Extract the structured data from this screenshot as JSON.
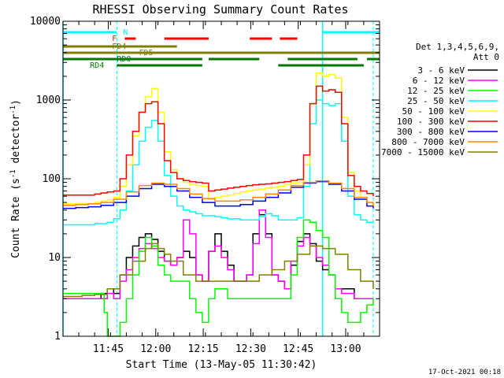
{
  "chart_data": {
    "type": "line",
    "title": "RHESSI Observing Summary Count Rates",
    "xlabel": "Start Time (13-May-05 11:30:42)",
    "ylabel_main": "Count Rate (s",
    "ylabel_sup1": "-1",
    "ylabel_mid": " detector",
    "ylabel_sup2": "-1",
    "ylabel_end": ")",
    "y_scale": "log",
    "ylim": [
      1,
      10000
    ],
    "xlim_minutes": [
      0,
      100
    ],
    "x_ticks": [
      {
        "m": 14.3,
        "label": "11:45"
      },
      {
        "m": 29.3,
        "label": "12:00"
      },
      {
        "m": 44.3,
        "label": "12:15"
      },
      {
        "m": 59.3,
        "label": "12:30"
      },
      {
        "m": 74.3,
        "label": "12:45"
      },
      {
        "m": 89.3,
        "label": "13:00"
      }
    ],
    "y_ticks": [
      {
        "v": 1,
        "label": "1"
      },
      {
        "v": 10,
        "label": "10"
      },
      {
        "v": 100,
        "label": "100"
      },
      {
        "v": 1000,
        "label": "1000"
      },
      {
        "v": 10000,
        "label": "10000"
      }
    ],
    "legend_header": [
      "Det 1,3,4,5,6,9,",
      "Att 0"
    ],
    "legend_position": "right",
    "series": [
      {
        "name": "3 - 6 keV",
        "color": "#000000",
        "x": [
          0,
          10,
          12,
          14,
          16,
          18,
          20,
          22,
          24,
          26,
          28,
          30,
          32,
          34,
          36,
          38,
          40,
          42,
          44,
          46,
          48,
          50,
          52,
          54,
          56,
          58,
          60,
          62,
          64,
          66,
          68,
          70,
          72,
          74,
          76,
          78,
          80,
          82,
          84,
          86,
          88,
          90,
          92,
          94,
          96,
          98
        ],
        "y": [
          3,
          3,
          3.5,
          4,
          3.5,
          6,
          10,
          14,
          18,
          20,
          17,
          12,
          9,
          8,
          10,
          12,
          10,
          6,
          5,
          12,
          20,
          12,
          8,
          5,
          5,
          6,
          20,
          35,
          20,
          6,
          5,
          4,
          8,
          16,
          20,
          15,
          9,
          7,
          6,
          4,
          4,
          4,
          3,
          3,
          3,
          3
        ]
      },
      {
        "name": "6 - 12 keV",
        "color": "#ff00ff",
        "x": [
          0,
          10,
          12,
          14,
          16,
          18,
          20,
          22,
          24,
          26,
          28,
          30,
          32,
          34,
          36,
          38,
          40,
          42,
          44,
          46,
          48,
          50,
          52,
          54,
          56,
          58,
          60,
          62,
          64,
          66,
          68,
          70,
          72,
          74,
          76,
          78,
          80,
          82,
          84,
          86,
          88,
          90,
          92,
          94,
          96,
          98
        ],
        "y": [
          3,
          3,
          3,
          3.5,
          3,
          5,
          7,
          10,
          13,
          15,
          13,
          10,
          9,
          8,
          10,
          30,
          20,
          6,
          5,
          12,
          14,
          10,
          7,
          5,
          5,
          6,
          15,
          40,
          18,
          6,
          5,
          4,
          9,
          14,
          18,
          14,
          10,
          8,
          6,
          4,
          3.5,
          3.5,
          3,
          3,
          3,
          3
        ]
      },
      {
        "name": "12 - 25 keV",
        "color": "#00ff00",
        "x": [
          0,
          10,
          12,
          13,
          14,
          16,
          18,
          20,
          22,
          24,
          26,
          28,
          30,
          32,
          34,
          36,
          38,
          40,
          42,
          44,
          46,
          48,
          50,
          52,
          54,
          56,
          58,
          60,
          62,
          64,
          66,
          68,
          70,
          72,
          74,
          76,
          78,
          80,
          82,
          84,
          86,
          88,
          90,
          92,
          94,
          96,
          98
        ],
        "y": [
          3.5,
          3.5,
          3.5,
          2,
          1,
          1,
          1.5,
          3,
          6,
          12,
          18,
          14,
          8,
          6,
          5,
          5,
          5,
          3,
          2,
          1.5,
          3,
          4,
          4,
          3,
          3,
          3,
          3,
          3,
          3,
          3,
          3,
          3,
          3,
          6,
          18,
          30,
          28,
          22,
          18,
          6,
          3,
          2,
          1.5,
          1.5,
          2,
          2.5,
          3
        ]
      },
      {
        "name": "25 - 50 keV",
        "color": "#00ffff",
        "x": [
          0,
          10,
          12,
          14,
          16,
          18,
          20,
          22,
          24,
          26,
          28,
          30,
          32,
          34,
          36,
          38,
          40,
          42,
          44,
          46,
          48,
          50,
          52,
          54,
          56,
          58,
          60,
          62,
          64,
          66,
          68,
          70,
          72,
          74,
          76,
          78,
          80,
          82,
          84,
          86,
          88,
          90,
          92,
          94,
          96,
          98
        ],
        "y": [
          26,
          27,
          27,
          28,
          31,
          40,
          70,
          150,
          300,
          450,
          550,
          300,
          110,
          60,
          45,
          40,
          38,
          36,
          34,
          34,
          33,
          32,
          31,
          31,
          30,
          30,
          30,
          33,
          36,
          34,
          30,
          30,
          30,
          32,
          80,
          500,
          1000,
          900,
          850,
          900,
          300,
          60,
          35,
          30,
          28,
          27
        ]
      },
      {
        "name": "50 - 100 keV",
        "color": "#ffff00",
        "x": [
          0,
          10,
          12,
          14,
          16,
          18,
          20,
          22,
          24,
          26,
          28,
          30,
          32,
          34,
          36,
          38,
          40,
          42,
          44,
          46,
          48,
          50,
          52,
          54,
          56,
          58,
          60,
          62,
          64,
          66,
          68,
          70,
          72,
          74,
          76,
          78,
          80,
          82,
          84,
          86,
          88,
          90,
          92,
          94,
          96,
          98
        ],
        "y": [
          48,
          50,
          52,
          54,
          58,
          80,
          150,
          350,
          700,
          1100,
          1400,
          700,
          220,
          130,
          100,
          90,
          85,
          82,
          80,
          55,
          58,
          60,
          62,
          65,
          68,
          70,
          72,
          74,
          76,
          78,
          80,
          85,
          88,
          90,
          150,
          900,
          2200,
          2000,
          2100,
          1900,
          600,
          120,
          70,
          58,
          50,
          45
        ]
      },
      {
        "name": "100 - 300 keV",
        "color": "#ff0000",
        "x": [
          0,
          10,
          12,
          14,
          16,
          18,
          20,
          22,
          24,
          26,
          28,
          30,
          32,
          34,
          36,
          38,
          40,
          42,
          44,
          46,
          48,
          50,
          52,
          54,
          56,
          58,
          60,
          62,
          64,
          66,
          68,
          70,
          72,
          74,
          76,
          78,
          80,
          82,
          84,
          86,
          88,
          90,
          92,
          94,
          96,
          98
        ],
        "y": [
          62,
          64,
          66,
          68,
          70,
          100,
          200,
          400,
          700,
          900,
          950,
          500,
          170,
          120,
          100,
          95,
          92,
          90,
          88,
          70,
          72,
          74,
          76,
          78,
          80,
          82,
          84,
          85,
          86,
          88,
          90,
          92,
          95,
          98,
          200,
          900,
          1500,
          1300,
          1350,
          1250,
          500,
          110,
          80,
          70,
          65,
          60
        ]
      },
      {
        "name": "300 - 800 keV",
        "color": "#0000ff",
        "x": [
          0,
          4,
          8,
          12,
          16,
          20,
          24,
          28,
          32,
          36,
          40,
          44,
          48,
          52,
          56,
          60,
          64,
          68,
          72,
          76,
          80,
          84,
          88,
          92,
          96,
          98
        ],
        "y": [
          42,
          43,
          44,
          46,
          50,
          60,
          75,
          85,
          80,
          70,
          58,
          50,
          45,
          45,
          47,
          52,
          58,
          66,
          78,
          88,
          92,
          85,
          70,
          55,
          45,
          42
        ]
      },
      {
        "name": "800 - 7000 keV",
        "color": "#ff8800",
        "x": [
          0,
          4,
          8,
          12,
          16,
          20,
          24,
          28,
          32,
          36,
          40,
          44,
          48,
          52,
          56,
          60,
          64,
          68,
          72,
          76,
          80,
          84,
          88,
          92,
          96,
          98
        ],
        "y": [
          46,
          47,
          48,
          50,
          55,
          68,
          82,
          88,
          85,
          75,
          64,
          56,
          52,
          52,
          54,
          58,
          64,
          72,
          82,
          90,
          94,
          88,
          75,
          58,
          50,
          45
        ]
      },
      {
        "name": "7000 - 15000 keV",
        "color": "#808000",
        "x": [
          0,
          6,
          10,
          14,
          18,
          22,
          26,
          28,
          30,
          32,
          34,
          38,
          42,
          46,
          50,
          54,
          58,
          62,
          66,
          70,
          74,
          78,
          82,
          86,
          90,
          94,
          98
        ],
        "y": [
          3.2,
          3.3,
          3.4,
          4,
          6,
          9,
          13,
          15,
          13,
          11,
          9,
          6,
          5,
          5,
          5,
          5,
          5,
          6,
          7,
          9,
          11,
          14,
          13,
          11,
          7,
          5,
          4
        ]
      }
    ],
    "markers": {
      "N_label": "N",
      "F_label": "F",
      "FD4_label": "FD4",
      "FD5_label": "FD5",
      "RD0_label": "RD0",
      "RD4_label": "RD4",
      "N_color": "#00ffff",
      "F_color": "#ff0000",
      "FD_color": "#808000",
      "RD_color": "#007700",
      "N_bars": [
        [
          0,
          17
        ],
        [
          82,
          100
        ]
      ],
      "F_bars": [
        [
          19.5,
          23
        ],
        [
          32,
          46
        ],
        [
          59,
          66
        ],
        [
          68.5,
          74
        ]
      ],
      "FD4_bars": [
        [
          0,
          36
        ],
        [
          23,
          35
        ]
      ],
      "FD5_bars": [
        [
          36,
          100
        ]
      ],
      "RD0_bars": [
        [
          0,
          44
        ],
        [
          46,
          62
        ],
        [
          71,
          93
        ],
        [
          96,
          100
        ]
      ],
      "RD4_bars": [
        [
          17,
          44
        ],
        [
          68,
          95
        ]
      ],
      "vertical_dashed_cyan": [
        17,
        98
      ],
      "vertical_solid_cyan": [
        0,
        82
      ]
    }
  },
  "footer": {
    "timestamp": "17-Oct-2021 00:18"
  }
}
